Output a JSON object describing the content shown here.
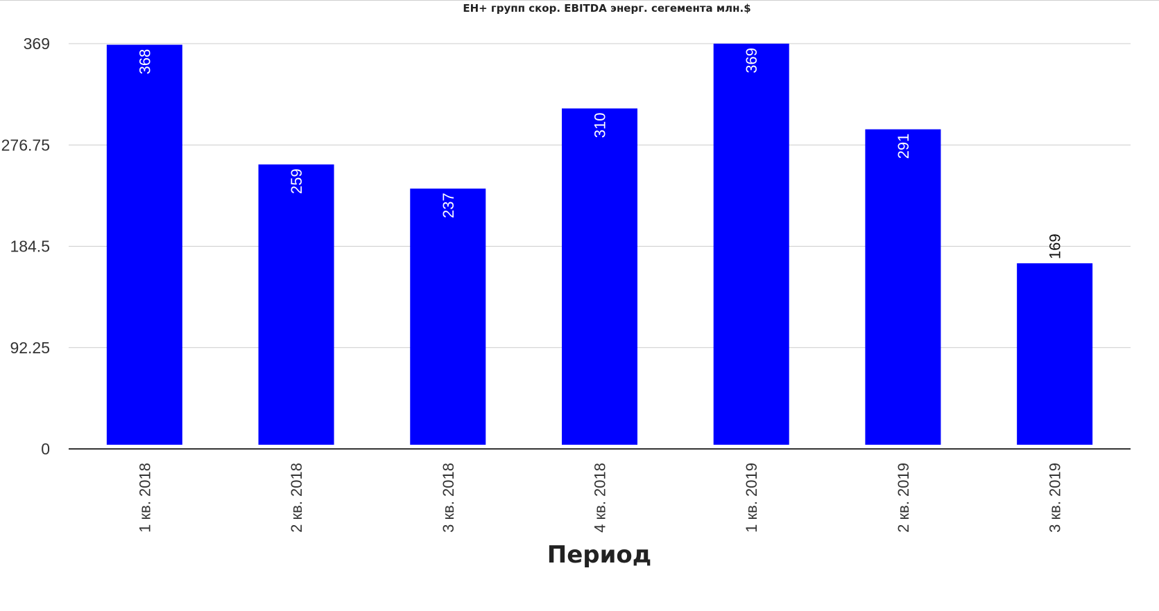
{
  "chart_data": {
    "type": "bar",
    "title": "ЕН+ групп скор. EBITDA энерг. сегемента млн.$",
    "xlabel": "Период",
    "ylabel": "",
    "categories": [
      "1 кв. 2018",
      "2 кв. 2018",
      "3 кв. 2018",
      "4 кв. 2018",
      "1 кв. 2019",
      "2 кв. 2019",
      "3 кв. 2019"
    ],
    "values": [
      368,
      259,
      237,
      310,
      369,
      291,
      169
    ],
    "ylim": [
      0,
      369
    ],
    "yticks": [
      "0",
      "92.25",
      "184.5",
      "276.75",
      "369"
    ],
    "bar_color": "#0000ff",
    "grid": true,
    "legend": "none"
  }
}
